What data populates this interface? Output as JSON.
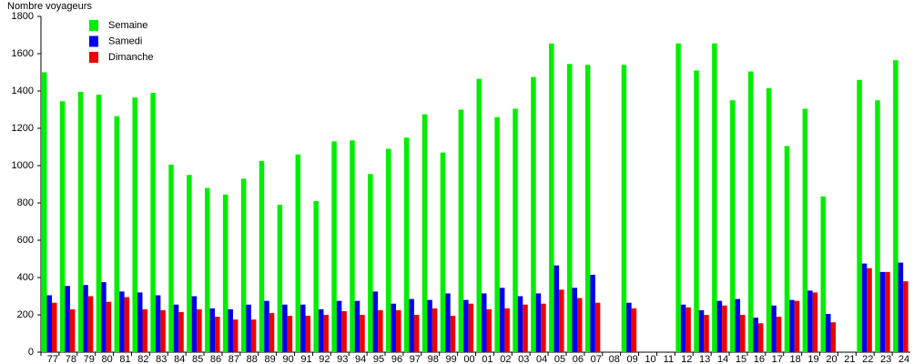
{
  "chart_data": {
    "type": "bar",
    "y_label": "Nombre voyageurs",
    "categories": [
      "77",
      "78",
      "79",
      "80",
      "81",
      "82",
      "83",
      "84",
      "85",
      "86",
      "87",
      "88",
      "89",
      "90",
      "91",
      "92",
      "93",
      "94",
      "95",
      "96",
      "97",
      "98",
      "99",
      "00",
      "01",
      "02",
      "03",
      "04",
      "05",
      "06",
      "07",
      "08",
      "09",
      "10",
      "11",
      "12",
      "13",
      "14",
      "15",
      "16",
      "17",
      "18",
      "19",
      "20",
      "21",
      "22",
      "23",
      "24"
    ],
    "series": [
      {
        "name": "Semaine",
        "color": "#00ee00",
        "values": [
          1500,
          1345,
          1395,
          1380,
          1265,
          1365,
          1390,
          1005,
          950,
          880,
          845,
          930,
          1025,
          790,
          1060,
          810,
          1130,
          1135,
          955,
          1090,
          1150,
          1275,
          1070,
          1300,
          1465,
          1260,
          1305,
          1475,
          1655,
          1545,
          1540,
          null,
          1540,
          null,
          null,
          1655,
          1510,
          1655,
          1350,
          1505,
          1415,
          1105,
          1305,
          835,
          null,
          1460,
          1350,
          1565
        ]
      },
      {
        "name": "Samedi",
        "color": "#0000ee",
        "values": [
          305,
          355,
          360,
          375,
          325,
          320,
          305,
          255,
          300,
          235,
          230,
          255,
          275,
          255,
          255,
          230,
          275,
          275,
          325,
          260,
          285,
          280,
          315,
          280,
          315,
          345,
          300,
          315,
          465,
          345,
          415,
          null,
          265,
          null,
          null,
          255,
          225,
          275,
          285,
          185,
          250,
          280,
          330,
          205,
          null,
          475,
          430,
          480
        ]
      },
      {
        "name": "Dimanche",
        "color": "#ee0000",
        "values": [
          265,
          230,
          300,
          270,
          295,
          230,
          225,
          215,
          230,
          190,
          175,
          175,
          210,
          195,
          195,
          200,
          220,
          200,
          225,
          225,
          200,
          235,
          195,
          260,
          230,
          235,
          255,
          260,
          335,
          290,
          265,
          null,
          235,
          null,
          null,
          240,
          200,
          250,
          200,
          155,
          190,
          275,
          320,
          160,
          null,
          450,
          430,
          380
        ]
      }
    ],
    "ylim": [
      0,
      1800
    ],
    "yticks": [
      0,
      200,
      400,
      600,
      800,
      1000,
      1200,
      1400,
      1600,
      1800
    ]
  }
}
